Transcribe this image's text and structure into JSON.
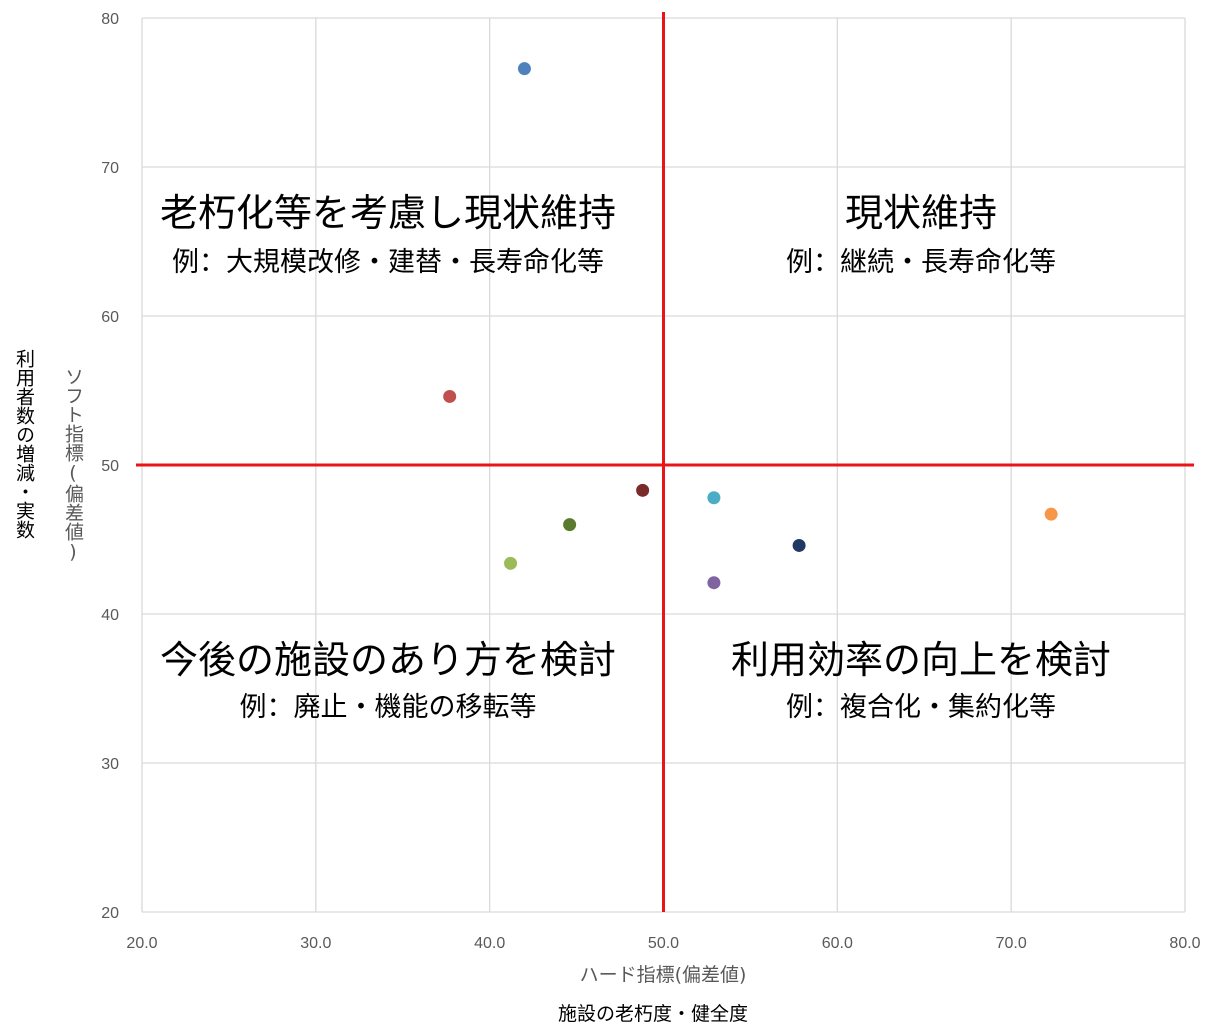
{
  "chart_data": {
    "type": "scatter",
    "xlabel": "ハード指標(偏差値)",
    "xsublabel": "施設の老朽度・健全度",
    "ylabel": "ソフト指標(偏差値)",
    "ysublabel": "利用者数の増減・実数",
    "xlim": [
      20,
      80
    ],
    "ylim": [
      20,
      80
    ],
    "x_ticks": [
      "20.0",
      "30.0",
      "40.0",
      "50.0",
      "60.0",
      "70.0",
      "80.0"
    ],
    "y_ticks": [
      "20",
      "30",
      "40",
      "50",
      "60",
      "70",
      "80"
    ],
    "grid": true,
    "reference_lines": {
      "x": 50,
      "y": 50,
      "color": "#e8141a"
    },
    "quadrants": [
      {
        "id": "top-left",
        "title": "老朽化等を考慮し現状維持",
        "subtitle": "例：大規模改修・建替・長寿命化等"
      },
      {
        "id": "top-right",
        "title": "現状維持",
        "subtitle": "例：継続・長寿命化等"
      },
      {
        "id": "bottom-left",
        "title": "今後の施設のあり方を検討",
        "subtitle": "例：廃止・機能の移転等"
      },
      {
        "id": "bottom-right",
        "title": "利用効率の向上を検討",
        "subtitle": "例：複合化・集約化等"
      }
    ],
    "points": [
      {
        "x": 42.0,
        "y": 76.6,
        "color": "#4f81bd"
      },
      {
        "x": 37.7,
        "y": 54.6,
        "color": "#c0504d"
      },
      {
        "x": 48.8,
        "y": 48.3,
        "color": "#7b2a2a"
      },
      {
        "x": 44.6,
        "y": 46.0,
        "color": "#5a7a2e"
      },
      {
        "x": 41.2,
        "y": 43.4,
        "color": "#9bbb59"
      },
      {
        "x": 52.9,
        "y": 47.8,
        "color": "#4bacc6"
      },
      {
        "x": 57.8,
        "y": 44.6,
        "color": "#1f3864"
      },
      {
        "x": 52.9,
        "y": 42.1,
        "color": "#8064a2"
      },
      {
        "x": 72.3,
        "y": 46.7,
        "color": "#f79646"
      }
    ]
  }
}
